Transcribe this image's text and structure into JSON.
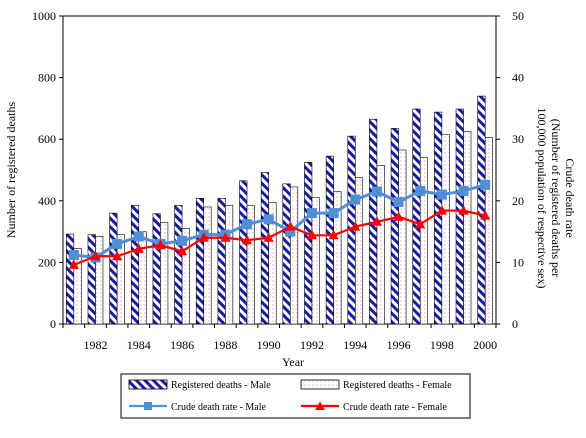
{
  "chart_data": {
    "type": "bar",
    "title": "",
    "xlabel": "Year",
    "ylabel": "Number of registered deaths",
    "y2label_lines": [
      "Crude death rate",
      "(Number of registered deaths per",
      "100,000 population of respective sex)"
    ],
    "ylim": [
      0,
      1000
    ],
    "y2lim": [
      0,
      50
    ],
    "yticks": [
      "0",
      "200",
      "400",
      "600",
      "800",
      "1000"
    ],
    "y2ticks": [
      "0",
      "10",
      "20",
      "30",
      "40",
      "50"
    ],
    "categories": [
      1981,
      1982,
      1983,
      1984,
      1985,
      1986,
      1987,
      1988,
      1989,
      1990,
      1991,
      1992,
      1993,
      1994,
      1995,
      1996,
      1997,
      1998,
      1999,
      2000
    ],
    "xtick_labels": [
      "1982",
      "1984",
      "1986",
      "1988",
      "1990",
      "1992",
      "1994",
      "1996",
      "1998",
      "2000"
    ],
    "series": [
      {
        "name": "Registered deaths - Male",
        "kind": "bar",
        "axis": "left",
        "values": [
          292,
          290,
          360,
          385,
          358,
          385,
          408,
          408,
          465,
          492,
          455,
          525,
          545,
          610,
          665,
          635,
          698,
          688,
          698,
          740
        ]
      },
      {
        "name": "Registered deaths - Female",
        "kind": "bar",
        "axis": "left",
        "values": [
          245,
          285,
          290,
          300,
          330,
          310,
          380,
          385,
          385,
          395,
          445,
          410,
          430,
          475,
          515,
          565,
          540,
          615,
          625,
          605
        ]
      },
      {
        "name": "Crude death rate - Male",
        "kind": "line",
        "axis": "right",
        "color": "#4f8fd6",
        "marker": "square",
        "values": [
          11.2,
          10.8,
          13.0,
          14.2,
          13.0,
          13.5,
          14.5,
          14.5,
          16.2,
          17.0,
          15.0,
          18.0,
          18.0,
          20.2,
          21.5,
          19.8,
          21.6,
          21.0,
          21.6,
          22.6
        ]
      },
      {
        "name": "Crude death rate - Female",
        "kind": "line",
        "axis": "right",
        "color": "#ff0000",
        "marker": "triangle",
        "values": [
          9.6,
          11.0,
          11.0,
          12.2,
          12.8,
          11.8,
          14.0,
          14.0,
          13.6,
          14.0,
          15.8,
          14.4,
          14.4,
          15.8,
          16.6,
          17.4,
          16.2,
          18.4,
          18.4,
          17.6
        ]
      }
    ],
    "legend": "bottom"
  }
}
